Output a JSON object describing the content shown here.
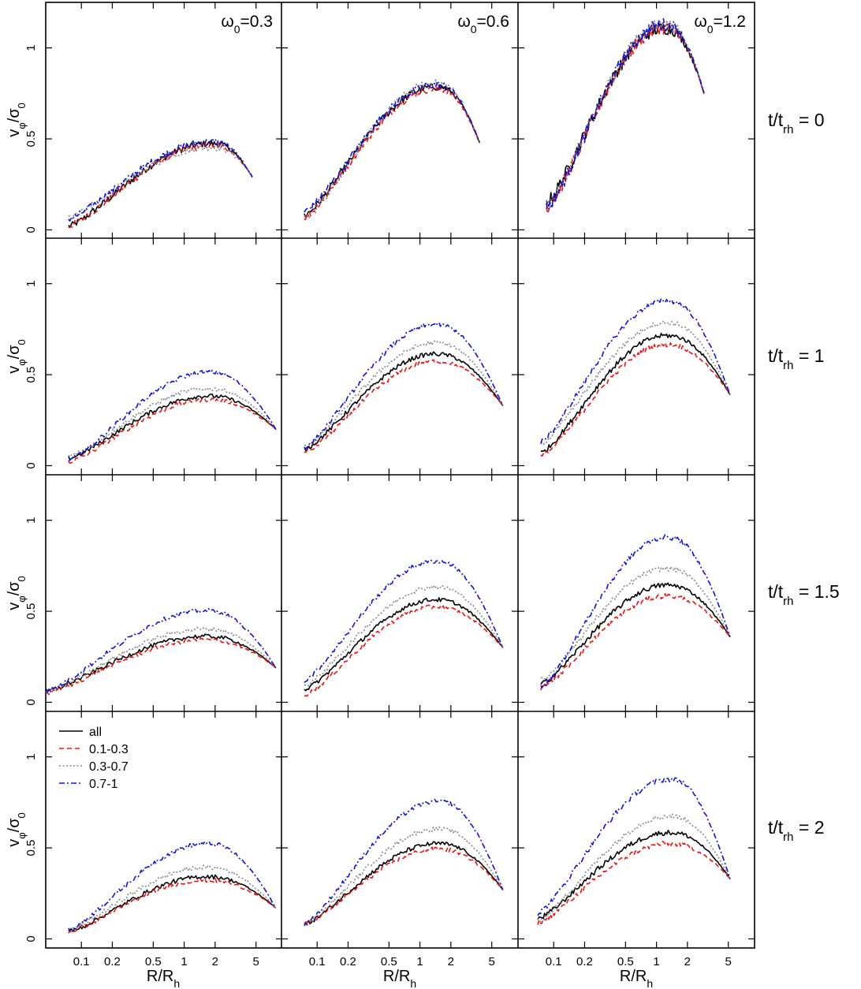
{
  "figure": {
    "ylabel_main": "v",
    "ylabel_sub1": "φ",
    "ylabel_slash": "/σ",
    "ylabel_sub2": "0",
    "xlabel_main": "R/R",
    "xlabel_sub": "h",
    "columns": [
      {
        "pre": "ω",
        "sub": "0",
        "post": "=0.3"
      },
      {
        "pre": "ω",
        "sub": "0",
        "post": "=0.6"
      },
      {
        "pre": "ω",
        "sub": "0",
        "post": "=1.2"
      }
    ],
    "rows": [
      {
        "pre": "t/t",
        "sub": "rh",
        "post": " = 0"
      },
      {
        "pre": "t/t",
        "sub": "rh",
        "post": " = 1"
      },
      {
        "pre": "t/t",
        "sub": "rh",
        "post": " = 1.5"
      },
      {
        "pre": "t/t",
        "sub": "rh",
        "post": " = 2"
      }
    ],
    "legend": {
      "location": "top-left of bottom-left panel",
      "entries": [
        {
          "label": "all",
          "color": "#000000",
          "dash": "solid"
        },
        {
          "label": "0.1-0.3",
          "color": "#ee1111",
          "dash": "dashed"
        },
        {
          "label": "0.3-0.7",
          "color": "#888888",
          "dash": "dotted"
        },
        {
          "label": "0.7-1",
          "color": "#1111dd",
          "dash": "dotdash"
        }
      ]
    },
    "xticks": [
      0.1,
      0.2,
      0.5,
      1,
      2,
      5
    ],
    "xtick_labels": [
      "0.1",
      "0.2",
      "0.5",
      "1",
      "2",
      "5"
    ],
    "yticks": [
      0,
      0.5,
      1
    ],
    "ytick_labels": [
      "0",
      "0.5",
      "1"
    ]
  },
  "chart_data": {
    "type": "line",
    "x_scale": "log",
    "xlim": [
      0.045,
      9.0
    ],
    "ylim": [
      -0.05,
      1.25
    ],
    "series_order": [
      "all",
      "0.1-0.3",
      "0.3-0.7",
      "0.7-1"
    ],
    "panels": [
      {
        "row": 0,
        "col": 0,
        "x_start": 0.075,
        "x_end": 4.6,
        "peak_x": 2.2,
        "edge": 0.29,
        "inner": {
          "all": 0.02,
          "0.1-0.3": 0.02,
          "0.3-0.7": 0.07,
          "0.7-1": 0.06
        },
        "peak": {
          "all": 0.47,
          "0.1-0.3": 0.46,
          "0.3-0.7": 0.45,
          "0.7-1": 0.48
        },
        "noise": 0.018
      },
      {
        "row": 0,
        "col": 1,
        "x_start": 0.075,
        "x_end": 3.8,
        "peak_x": 1.7,
        "edge": 0.48,
        "inner": {
          "all": 0.08,
          "0.1-0.3": 0.07,
          "0.3-0.7": 0.06,
          "0.7-1": 0.1
        },
        "peak": {
          "all": 0.78,
          "0.1-0.3": 0.77,
          "0.3-0.7": 0.8,
          "0.7-1": 0.79
        },
        "noise": 0.02
      },
      {
        "row": 0,
        "col": 2,
        "x_start": 0.085,
        "x_end": 2.9,
        "peak_x": 1.4,
        "edge": 0.75,
        "inner": {
          "all": 0.15,
          "0.1-0.3": 0.12,
          "0.3-0.7": 0.13,
          "0.7-1": 0.12
        },
        "peak": {
          "all": 1.1,
          "0.1-0.3": 1.1,
          "0.3-0.7": 1.12,
          "0.7-1": 1.12
        },
        "noise": 0.035
      },
      {
        "row": 1,
        "col": 0,
        "x_start": 0.075,
        "x_end": 7.8,
        "peak_x": 2.1,
        "edge": 0.2,
        "inner": {
          "all": 0.04,
          "0.1-0.3": 0.02,
          "0.3-0.7": 0.05,
          "0.7-1": 0.03
        },
        "peak": {
          "all": 0.38,
          "0.1-0.3": 0.36,
          "0.3-0.7": 0.42,
          "0.7-1": 0.51
        },
        "noise": 0.012
      },
      {
        "row": 1,
        "col": 1,
        "x_start": 0.075,
        "x_end": 6.4,
        "peak_x": 1.7,
        "edge": 0.33,
        "inner": {
          "all": 0.09,
          "0.1-0.3": 0.07,
          "0.3-0.7": 0.1,
          "0.7-1": 0.1
        },
        "peak": {
          "all": 0.61,
          "0.1-0.3": 0.57,
          "0.3-0.7": 0.67,
          "0.7-1": 0.77
        },
        "noise": 0.012
      },
      {
        "row": 1,
        "col": 2,
        "x_start": 0.075,
        "x_end": 5.2,
        "peak_x": 1.5,
        "edge": 0.39,
        "inner": {
          "all": 0.07,
          "0.1-0.3": 0.05,
          "0.3-0.7": 0.12,
          "0.7-1": 0.13
        },
        "peak": {
          "all": 0.71,
          "0.1-0.3": 0.66,
          "0.3-0.7": 0.78,
          "0.7-1": 0.9
        },
        "noise": 0.014
      },
      {
        "row": 2,
        "col": 0,
        "x_start": 0.045,
        "x_end": 7.8,
        "peak_x": 2.0,
        "edge": 0.19,
        "inner": {
          "all": 0.06,
          "0.1-0.3": 0.05,
          "0.3-0.7": 0.06,
          "0.7-1": 0.06
        },
        "peak": {
          "all": 0.36,
          "0.1-0.3": 0.34,
          "0.3-0.7": 0.4,
          "0.7-1": 0.5
        },
        "noise": 0.012
      },
      {
        "row": 2,
        "col": 1,
        "x_start": 0.075,
        "x_end": 6.4,
        "peak_x": 1.7,
        "edge": 0.3,
        "inner": {
          "all": 0.07,
          "0.1-0.3": 0.04,
          "0.3-0.7": 0.09,
          "0.7-1": 0.12
        },
        "peak": {
          "all": 0.56,
          "0.1-0.3": 0.52,
          "0.3-0.7": 0.63,
          "0.7-1": 0.77
        },
        "noise": 0.012
      },
      {
        "row": 2,
        "col": 2,
        "x_start": 0.075,
        "x_end": 5.2,
        "peak_x": 1.5,
        "edge": 0.36,
        "inner": {
          "all": 0.1,
          "0.1-0.3": 0.08,
          "0.3-0.7": 0.12,
          "0.7-1": 0.08
        },
        "peak": {
          "all": 0.64,
          "0.1-0.3": 0.58,
          "0.3-0.7": 0.73,
          "0.7-1": 0.9
        },
        "noise": 0.014
      },
      {
        "row": 3,
        "col": 0,
        "x_start": 0.075,
        "x_end": 7.8,
        "peak_x": 2.0,
        "edge": 0.17,
        "inner": {
          "all": 0.04,
          "0.1-0.3": 0.04,
          "0.3-0.7": 0.05,
          "0.7-1": 0.05
        },
        "peak": {
          "all": 0.34,
          "0.1-0.3": 0.32,
          "0.3-0.7": 0.39,
          "0.7-1": 0.52
        },
        "noise": 0.012
      },
      {
        "row": 3,
        "col": 1,
        "x_start": 0.075,
        "x_end": 6.4,
        "peak_x": 1.8,
        "edge": 0.27,
        "inner": {
          "all": 0.08,
          "0.1-0.3": 0.08,
          "0.3-0.7": 0.08,
          "0.7-1": 0.08
        },
        "peak": {
          "all": 0.52,
          "0.1-0.3": 0.49,
          "0.3-0.7": 0.6,
          "0.7-1": 0.75
        },
        "noise": 0.012
      },
      {
        "row": 3,
        "col": 2,
        "x_start": 0.07,
        "x_end": 5.2,
        "peak_x": 1.6,
        "edge": 0.33,
        "inner": {
          "all": 0.11,
          "0.1-0.3": 0.09,
          "0.3-0.7": 0.1,
          "0.7-1": 0.14
        },
        "peak": {
          "all": 0.58,
          "0.1-0.3": 0.52,
          "0.3-0.7": 0.67,
          "0.7-1": 0.87
        },
        "noise": 0.014
      }
    ]
  }
}
